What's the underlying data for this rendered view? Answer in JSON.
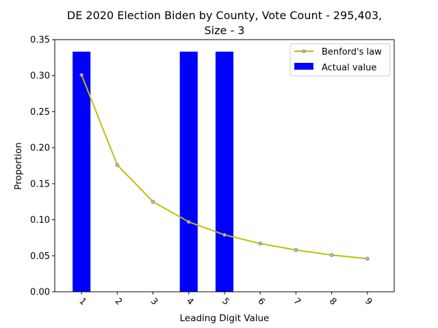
{
  "chart_data": {
    "type": "bar",
    "title_lines": [
      "DE 2020 Election Biden by County,  Vote Count - 295,403,",
      "Size - 3"
    ],
    "xlabel": "Leading Digit Value",
    "ylabel": "Proportion",
    "categories": [
      "1",
      "2",
      "3",
      "4",
      "5",
      "6",
      "7",
      "8",
      "9"
    ],
    "ylim": [
      0,
      0.35
    ],
    "yticks": [
      "0.00",
      "0.05",
      "0.10",
      "0.15",
      "0.20",
      "0.25",
      "0.30",
      "0.35"
    ],
    "series": [
      {
        "name": "Actual value",
        "kind": "bar",
        "color": "#0000ff",
        "values": [
          0.3333,
          0,
          0,
          0.3333,
          0.3333,
          0,
          0,
          0,
          0
        ]
      },
      {
        "name": "Benford's law",
        "kind": "line",
        "color": "#bfbf00",
        "marker_face": "#bfbfbf",
        "marker_edge": "#808080",
        "values": [
          0.301,
          0.176,
          0.125,
          0.097,
          0.079,
          0.067,
          0.058,
          0.051,
          0.046
        ]
      }
    ],
    "legend": {
      "position": "top-right",
      "entries": [
        {
          "label": "Benford's law",
          "kind": "line"
        },
        {
          "label": "Actual value",
          "kind": "bar"
        }
      ]
    },
    "grid": false,
    "xtick_rotation": 45
  }
}
